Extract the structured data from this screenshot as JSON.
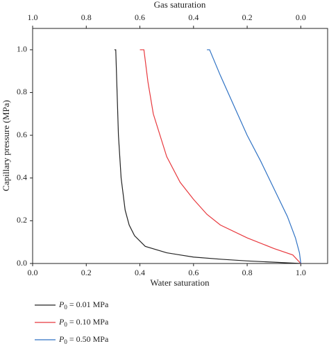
{
  "chart_data": {
    "type": "line",
    "xlabel": "Water saturation",
    "x2label": "Gas saturation",
    "ylabel": "Capillary pressure (MPa)",
    "xlim": [
      0,
      1.1
    ],
    "ylim": [
      0,
      1.1
    ],
    "x2lim": [
      1,
      -0.1
    ],
    "xticks": [
      {
        "value": 0,
        "label": "0.0"
      },
      0.2,
      0.4,
      0.6,
      0.8,
      {
        "value": 1,
        "label": "1.0"
      }
    ],
    "x2ticks": [
      {
        "value": 1,
        "label": "1.0"
      },
      0.8,
      0.6,
      0.4,
      0.2,
      {
        "value": 0,
        "label": "0.0"
      }
    ],
    "yticks": [
      {
        "value": 0,
        "label": "0.0"
      },
      0.2,
      0.4,
      0.6,
      0.8,
      {
        "value": 1,
        "label": "1.0"
      }
    ],
    "series": [
      {
        "name": "P0 = 0.01 MPa",
        "color": "#222222",
        "x": [
          0.305,
          0.31,
          0.315,
          0.32,
          0.33,
          0.345,
          0.36,
          0.38,
          0.42,
          0.5,
          0.6,
          0.7,
          0.8,
          0.9,
          1.0
        ],
        "values": [
          1.0,
          1.0,
          0.8,
          0.6,
          0.4,
          0.25,
          0.18,
          0.13,
          0.08,
          0.05,
          0.03,
          0.02,
          0.012,
          0.006,
          0
        ]
      },
      {
        "name": "P0 = 0.10 MPa",
        "color": "#e8383d",
        "x": [
          0.4,
          0.415,
          0.42,
          0.43,
          0.45,
          0.5,
          0.55,
          0.6,
          0.65,
          0.7,
          0.8,
          0.9,
          0.97,
          1.0
        ],
        "values": [
          1.0,
          1.0,
          0.95,
          0.85,
          0.7,
          0.5,
          0.38,
          0.3,
          0.23,
          0.18,
          0.12,
          0.07,
          0.04,
          0
        ]
      },
      {
        "name": "P0 = 0.50 MPa",
        "color": "#2f72c4",
        "x": [
          0.65,
          0.66,
          0.67,
          0.7,
          0.75,
          0.8,
          0.85,
          0.9,
          0.95,
          0.98,
          0.995,
          1.0
        ],
        "values": [
          1.0,
          1.0,
          0.97,
          0.88,
          0.74,
          0.6,
          0.48,
          0.35,
          0.22,
          0.12,
          0.05,
          0
        ]
      }
    ]
  }
}
